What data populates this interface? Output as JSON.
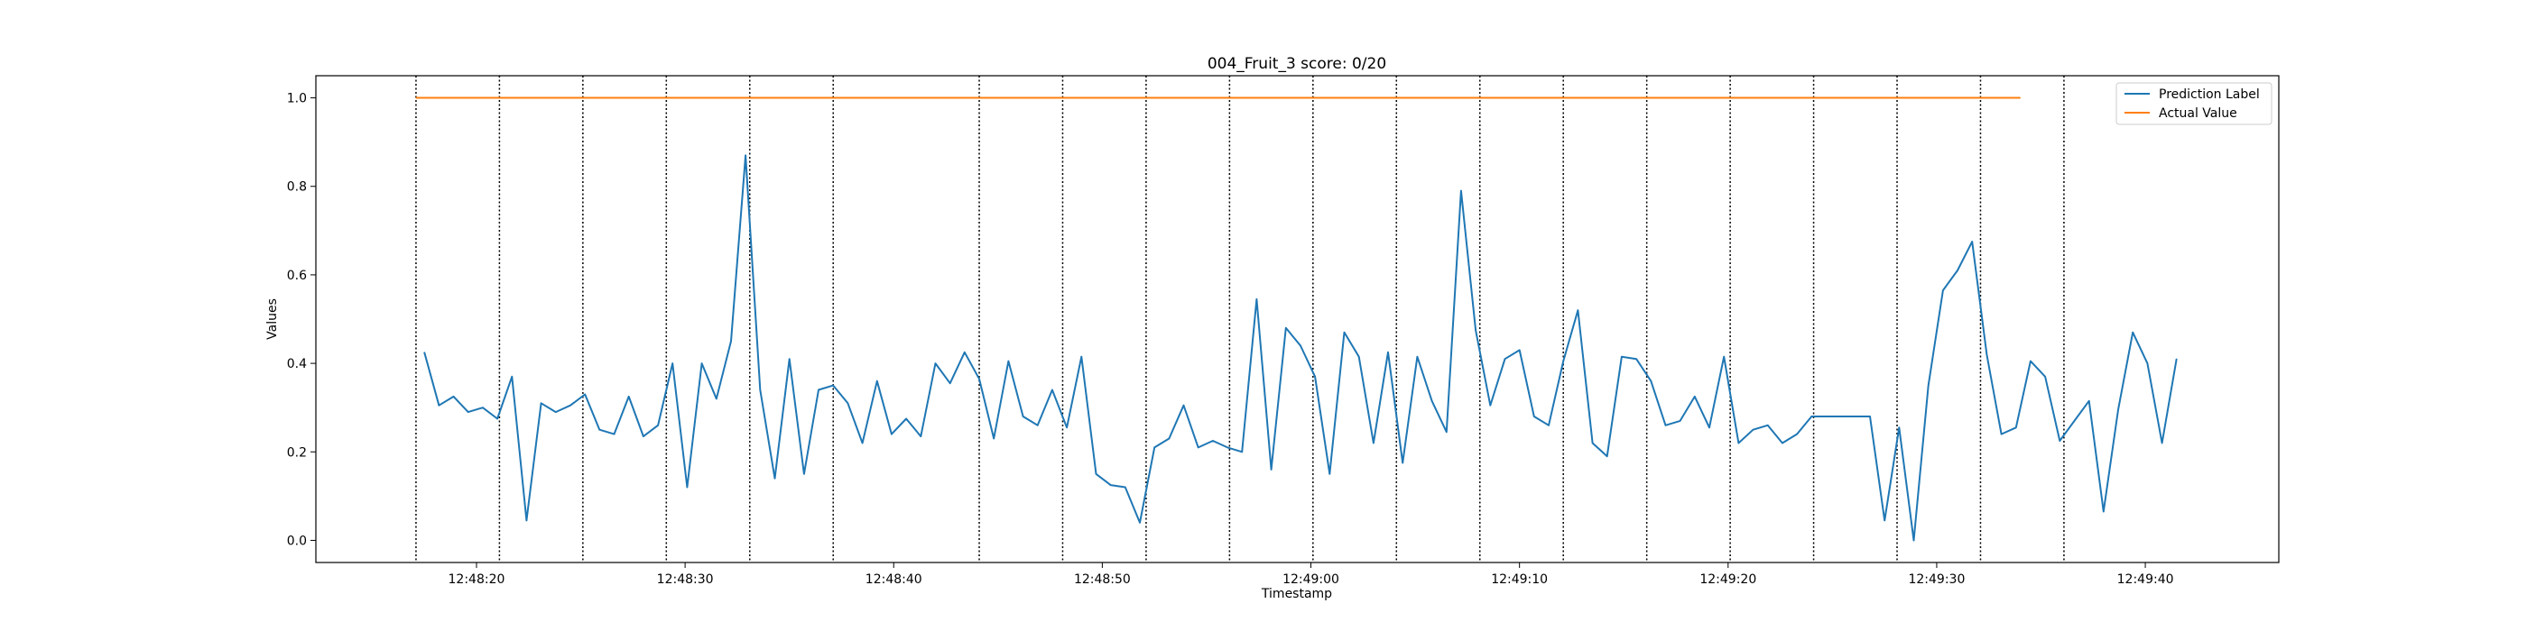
{
  "chart_data": {
    "type": "line",
    "title": "004_Fruit_3 score: 0/20",
    "xlabel": "Timestamp",
    "ylabel": "Values",
    "xlim": [
      "12:48:12.3",
      "12:49:46.4"
    ],
    "ylim": [
      -0.05,
      1.05
    ],
    "x_ticks": [
      "12:48:20",
      "12:48:30",
      "12:48:40",
      "12:48:50",
      "12:49:00",
      "12:49:10",
      "12:49:20",
      "12:49:30",
      "12:49:40"
    ],
    "y_ticks": [
      "0.0",
      "0.2",
      "0.4",
      "0.6",
      "0.8",
      "1.0"
    ],
    "legend_position": "upper right",
    "grid": false,
    "series": [
      {
        "name": "Prediction Label",
        "color": "#1f77b4",
        "x": [
          "12:48:17.5",
          "12:48:18.2",
          "12:48:18.9",
          "12:48:19.6",
          "12:48:20.3",
          "12:48:21.0",
          "12:48:21.7",
          "12:48:22.4",
          "12:48:23.1",
          "12:48:23.8",
          "12:48:24.5",
          "12:48:25.2",
          "12:48:25.9",
          "12:48:26.6",
          "12:48:27.3",
          "12:48:28.0",
          "12:48:28.7",
          "12:48:29.4",
          "12:48:30.1",
          "12:48:30.8",
          "12:48:31.5",
          "12:48:32.2",
          "12:48:32.9",
          "12:48:33.6",
          "12:48:34.3",
          "12:48:35.0",
          "12:48:35.7",
          "12:48:36.4",
          "12:48:37.1",
          "12:48:37.8",
          "12:48:38.5",
          "12:48:39.2",
          "12:48:39.9",
          "12:48:40.6",
          "12:48:41.3",
          "12:48:42.0",
          "12:48:42.7",
          "12:48:43.4",
          "12:48:44.1",
          "12:48:44.8",
          "12:48:45.5",
          "12:48:46.2",
          "12:48:46.9",
          "12:48:47.6",
          "12:48:48.3",
          "12:48:49.0",
          "12:48:49.7",
          "12:48:50.4",
          "12:48:51.1",
          "12:48:51.8",
          "12:48:52.5",
          "12:48:53.2",
          "12:48:53.9",
          "12:48:54.6",
          "12:48:55.3",
          "12:48:56.0",
          "12:48:56.7",
          "12:48:57.4",
          "12:48:58.1",
          "12:48:58.8",
          "12:48:59.5",
          "12:49:00.2",
          "12:49:00.9",
          "12:49:01.6",
          "12:49:02.3",
          "12:49:03.0",
          "12:49:03.7",
          "12:49:04.4",
          "12:49:05.1",
          "12:49:05.8",
          "12:49:06.5",
          "12:49:07.2",
          "12:49:07.9",
          "12:49:08.6",
          "12:49:09.3",
          "12:49:10.0",
          "12:49:10.7",
          "12:49:11.4",
          "12:49:12.1",
          "12:49:12.8",
          "12:49:13.5",
          "12:49:14.2",
          "12:49:14.9",
          "12:49:15.6",
          "12:49:16.3",
          "12:49:17.0",
          "12:49:17.7",
          "12:49:18.4",
          "12:49:19.1",
          "12:49:19.8",
          "12:49:20.5",
          "12:49:21.2",
          "12:49:21.9",
          "12:49:22.6",
          "12:49:23.3",
          "12:49:24.0",
          "12:49:24.7",
          "12:49:25.4",
          "12:49:26.1",
          "12:49:26.8",
          "12:49:27.5",
          "12:49:28.2",
          "12:49:28.9",
          "12:49:29.6",
          "12:49:30.3",
          "12:49:31.0",
          "12:49:31.7",
          "12:49:32.4",
          "12:49:33.1",
          "12:49:33.8",
          "12:49:34.5",
          "12:49:35.2",
          "12:49:35.9",
          "12:49:36.6",
          "12:49:37.3",
          "12:49:38.0",
          "12:49:38.7",
          "12:49:39.4",
          "12:49:40.1",
          "12:49:40.8",
          "12:49:41.5"
        ],
        "values": [
          0.425,
          0.305,
          0.325,
          0.29,
          0.3,
          0.275,
          0.37,
          0.045,
          0.31,
          0.29,
          0.305,
          0.33,
          0.25,
          0.24,
          0.325,
          0.235,
          0.26,
          0.4,
          0.12,
          0.4,
          0.32,
          0.45,
          0.87,
          0.34,
          0.14,
          0.41,
          0.15,
          0.34,
          0.35,
          0.31,
          0.22,
          0.36,
          0.24,
          0.275,
          0.235,
          0.4,
          0.355,
          0.425,
          0.365,
          0.23,
          0.405,
          0.28,
          0.26,
          0.34,
          0.255,
          0.415,
          0.15,
          0.125,
          0.12,
          0.04,
          0.21,
          0.23,
          0.305,
          0.21,
          0.225,
          0.21,
          0.2,
          0.545,
          0.16,
          0.48,
          0.44,
          0.37,
          0.15,
          0.47,
          0.415,
          0.22,
          0.425,
          0.175,
          0.415,
          0.315,
          0.245,
          0.79,
          0.475,
          0.305,
          0.41,
          0.43,
          0.28,
          0.26,
          0.405,
          0.52,
          0.22,
          0.19,
          0.415,
          0.41,
          0.36,
          0.26,
          0.27,
          0.325,
          0.255,
          0.415,
          0.22,
          0.25,
          0.26,
          0.22,
          0.24,
          0.28,
          0.28,
          0.28,
          0.28,
          0.28,
          0.045,
          0.255,
          0.0,
          0.35,
          0.565,
          0.61,
          0.675,
          0.42,
          0.24,
          0.255,
          0.405,
          0.37,
          0.225,
          0.27,
          0.315,
          0.065,
          0.295,
          0.47,
          0.4,
          0.22,
          0.41
        ]
      },
      {
        "name": "Actual Value",
        "color": "#ff7f0e",
        "x": [
          "12:48:17.1",
          "12:49:34.0"
        ],
        "values": [
          1.0,
          1.0
        ]
      }
    ],
    "vertical_markers": [
      "12:48:17.1",
      "12:48:21.1",
      "12:48:25.1",
      "12:48:29.1",
      "12:48:33.1",
      "12:48:37.1",
      "12:48:44.1",
      "12:48:48.1",
      "12:48:52.1",
      "12:48:56.1",
      "12:49:00.1",
      "12:49:04.1",
      "12:49:08.1",
      "12:49:12.1",
      "12:49:16.1",
      "12:49:20.1",
      "12:49:24.1",
      "12:49:28.1",
      "12:49:32.1",
      "12:49:36.1"
    ]
  }
}
